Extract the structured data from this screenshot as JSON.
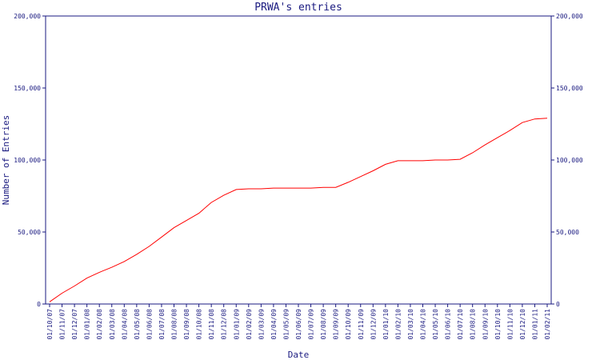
{
  "chart_data": {
    "type": "line",
    "title": "PRWA's entries",
    "xlabel": "Date",
    "ylabel": "Number of Entries",
    "ylim": [
      0,
      200000
    ],
    "y_ticks": [
      0,
      50000,
      100000,
      150000,
      200000
    ],
    "y_tick_labels": [
      "0",
      "50,000",
      "100,000",
      "150,000",
      "200,000"
    ],
    "grid": false,
    "legend": "none",
    "colors": {
      "line": "#ff0000",
      "axis": "#1a1a80",
      "background": "#ffffff"
    },
    "categories": [
      "01/10/07",
      "01/11/07",
      "01/12/07",
      "01/01/08",
      "01/02/08",
      "01/03/08",
      "01/04/08",
      "01/05/08",
      "01/06/08",
      "01/07/08",
      "01/08/08",
      "01/09/08",
      "01/10/08",
      "01/11/08",
      "01/12/08",
      "01/01/09",
      "01/02/09",
      "01/03/09",
      "01/04/09",
      "01/05/09",
      "01/06/09",
      "01/07/09",
      "01/08/09",
      "01/09/09",
      "01/10/09",
      "01/11/09",
      "01/12/09",
      "01/01/10",
      "01/02/10",
      "01/03/10",
      "01/04/10",
      "01/05/10",
      "01/06/10",
      "01/07/10",
      "01/08/10",
      "01/09/10",
      "01/10/10",
      "01/11/10",
      "01/12/10",
      "01/01/11",
      "01/02/11"
    ],
    "series": [
      {
        "values": [
          1500,
          7500,
          12500,
          18000,
          22000,
          25500,
          29500,
          34500,
          40000,
          46500,
          53000,
          58000,
          63000,
          70500,
          75500,
          79500,
          80000,
          80000,
          80500,
          80500,
          80500,
          80500,
          81000,
          81000,
          84500,
          88500,
          92500,
          97000,
          99500,
          99500,
          99500,
          100000,
          100000,
          100500,
          105000,
          110500,
          115500,
          120500,
          126000,
          128500,
          129000
        ]
      }
    ]
  }
}
